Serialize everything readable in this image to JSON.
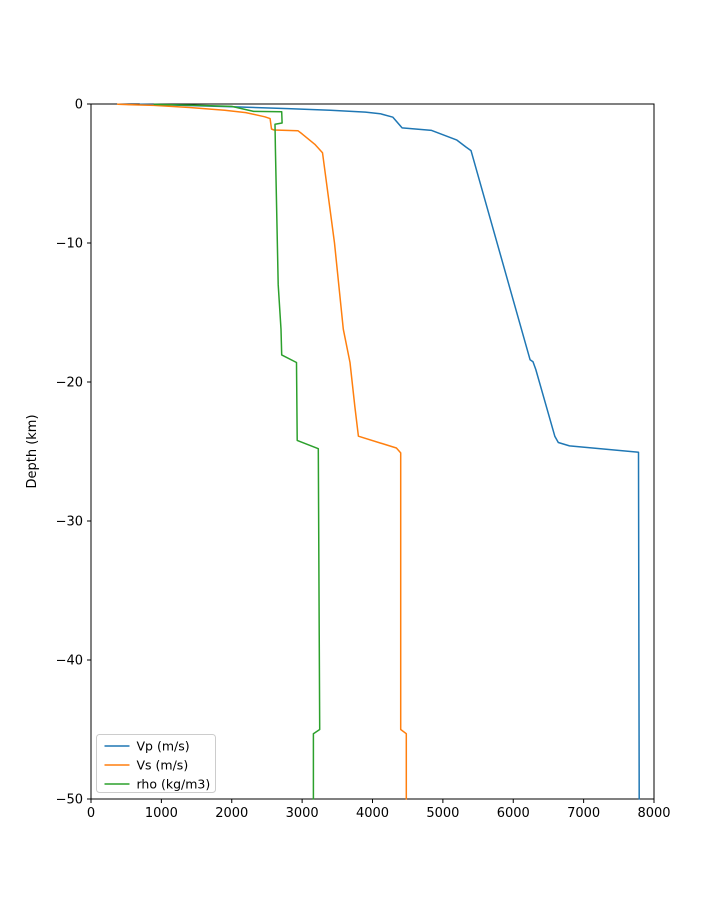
{
  "figure": {
    "background": "#ffffff",
    "title": ""
  },
  "chart_data": {
    "type": "line",
    "title": "",
    "xlabel": "",
    "ylabel": "Depth (km)",
    "xlim": [
      0,
      8000
    ],
    "ylim": [
      -50,
      0
    ],
    "x_ticks": [
      0,
      1000,
      2000,
      3000,
      4000,
      5000,
      6000,
      7000,
      8000
    ],
    "y_ticks": [
      0,
      -10,
      -20,
      -30,
      -40,
      -50
    ],
    "grid": false,
    "legend_position": "lower left",
    "axis_color": "#000000",
    "legend_border_color": "#cccccc",
    "series": [
      {
        "id": "vp",
        "name": "Vp (m/s)",
        "color": "#1f77b4",
        "points": [
          [
            700,
            -0.02
          ],
          [
            1200,
            -0.08
          ],
          [
            2000,
            -0.2
          ],
          [
            2800,
            -0.33
          ],
          [
            3400,
            -0.45
          ],
          [
            3900,
            -0.58
          ],
          [
            4110,
            -0.7
          ],
          [
            4290,
            -0.95
          ],
          [
            4420,
            -1.72
          ],
          [
            4840,
            -1.9
          ],
          [
            5200,
            -2.6
          ],
          [
            5330,
            -3.1
          ],
          [
            5400,
            -3.35
          ],
          [
            6240,
            -18.4
          ],
          [
            6280,
            -18.55
          ],
          [
            6320,
            -19.1
          ],
          [
            6590,
            -23.9
          ],
          [
            6640,
            -24.35
          ],
          [
            6800,
            -24.6
          ],
          [
            7780,
            -25.05
          ],
          [
            7790,
            -50
          ]
        ]
      },
      {
        "id": "vs",
        "name": "Vs (m/s)",
        "color": "#ff7f0e",
        "points": [
          [
            380,
            -0.02
          ],
          [
            900,
            -0.1
          ],
          [
            1400,
            -0.25
          ],
          [
            1900,
            -0.45
          ],
          [
            2200,
            -0.62
          ],
          [
            2470,
            -0.92
          ],
          [
            2545,
            -1.05
          ],
          [
            2565,
            -1.8
          ],
          [
            2600,
            -1.87
          ],
          [
            2940,
            -1.92
          ],
          [
            3000,
            -2.15
          ],
          [
            3180,
            -2.9
          ],
          [
            3290,
            -3.5
          ],
          [
            3460,
            -10
          ],
          [
            3585,
            -16.2
          ],
          [
            3680,
            -18.6
          ],
          [
            3750,
            -21.8
          ],
          [
            3800,
            -23.9
          ],
          [
            4340,
            -24.75
          ],
          [
            4400,
            -25.1
          ],
          [
            4400,
            -45.0
          ],
          [
            4480,
            -45.3
          ],
          [
            4480,
            -50
          ]
        ]
      },
      {
        "id": "rho",
        "name": "rho (kg/m3)",
        "color": "#2ca02c",
        "points": [
          [
            900,
            -0.03
          ],
          [
            1400,
            -0.08
          ],
          [
            2000,
            -0.17
          ],
          [
            2310,
            -0.53
          ],
          [
            2710,
            -0.56
          ],
          [
            2715,
            -1.37
          ],
          [
            2615,
            -1.45
          ],
          [
            2620,
            -3.2
          ],
          [
            2660,
            -13
          ],
          [
            2700,
            -16.2
          ],
          [
            2710,
            -18.05
          ],
          [
            2920,
            -18.6
          ],
          [
            2930,
            -24.2
          ],
          [
            3230,
            -24.8
          ],
          [
            3250,
            -45.0
          ],
          [
            3160,
            -45.3
          ],
          [
            3160,
            -50
          ]
        ]
      }
    ]
  }
}
